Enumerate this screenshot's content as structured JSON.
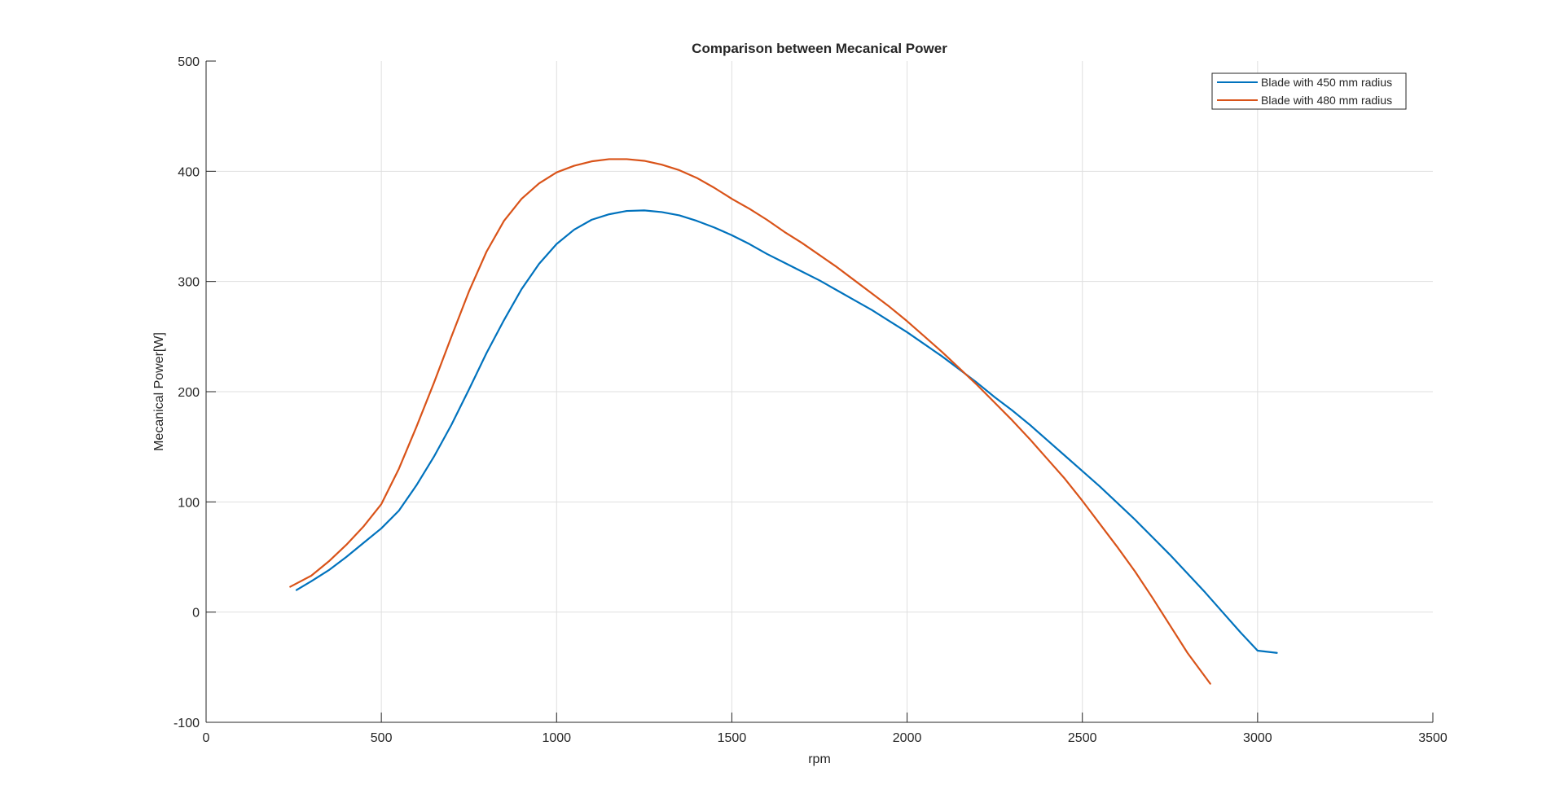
{
  "chart_data": {
    "type": "line",
    "title": "Comparison between Mecanical Power",
    "xlabel": "rpm",
    "ylabel": "Mecanical Power[W]",
    "xlim": [
      0,
      3500
    ],
    "ylim": [
      -100,
      500
    ],
    "xticks": [
      0,
      500,
      1000,
      1500,
      2000,
      2500,
      3000,
      3500
    ],
    "yticks": [
      -100,
      0,
      100,
      200,
      300,
      400,
      500
    ],
    "grid": true,
    "legend_position": "top-right",
    "series": [
      {
        "name": "Blade with 450 mm radius",
        "color": "#0072BD",
        "x": [
          258,
          300,
          350,
          400,
          450,
          500,
          550,
          600,
          650,
          700,
          750,
          800,
          850,
          900,
          950,
          1000,
          1050,
          1100,
          1150,
          1200,
          1250,
          1300,
          1350,
          1400,
          1450,
          1500,
          1550,
          1600,
          1650,
          1700,
          1750,
          1800,
          1850,
          1900,
          1950,
          2000,
          2050,
          2100,
          2150,
          2200,
          2250,
          2300,
          2350,
          2400,
          2450,
          2500,
          2550,
          2600,
          2650,
          2700,
          2750,
          2800,
          2850,
          2900,
          2950,
          3000,
          3055
        ],
        "y": [
          20,
          28,
          38,
          50,
          63,
          76,
          92,
          115,
          141,
          170,
          202,
          235,
          265,
          293,
          316,
          334,
          347,
          356,
          361,
          364,
          364.5,
          363,
          360,
          355,
          349,
          342,
          334,
          325,
          317,
          309,
          301,
          292,
          283,
          274,
          264,
          254,
          243,
          232,
          220,
          208,
          195,
          183,
          170,
          156,
          142,
          128,
          114,
          99,
          84,
          68,
          52,
          35,
          18,
          0,
          -18,
          -35,
          -37
        ]
      },
      {
        "name": "Blade with 480 mm radius",
        "color": "#D95319",
        "x": [
          240,
          300,
          350,
          400,
          450,
          500,
          550,
          600,
          650,
          700,
          750,
          800,
          850,
          900,
          950,
          1000,
          1050,
          1100,
          1150,
          1200,
          1250,
          1300,
          1350,
          1400,
          1450,
          1500,
          1550,
          1600,
          1650,
          1700,
          1750,
          1800,
          1850,
          1900,
          1950,
          2000,
          2050,
          2100,
          2150,
          2200,
          2250,
          2300,
          2350,
          2400,
          2450,
          2500,
          2550,
          2600,
          2650,
          2700,
          2750,
          2800,
          2865
        ],
        "y": [
          23,
          33,
          46,
          61,
          78,
          98,
          130,
          168,
          208,
          250,
          291,
          327,
          355,
          375,
          389,
          399,
          405,
          409,
          411,
          411,
          409.5,
          406,
          401,
          394,
          385,
          375,
          366,
          356,
          345,
          335,
          324,
          313,
          301,
          289,
          277,
          264,
          250,
          236,
          221,
          206,
          190,
          174,
          157,
          139,
          121,
          101,
          80,
          59,
          37,
          13,
          -12,
          -37,
          -65
        ]
      }
    ]
  },
  "style": {
    "axis_color": "#262626",
    "grid_color": "#dfdfdf",
    "background": "#ffffff"
  }
}
